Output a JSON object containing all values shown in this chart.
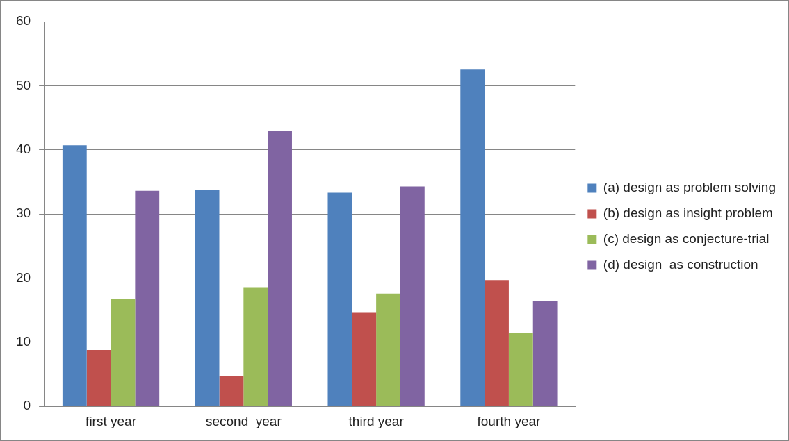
{
  "chart_data": {
    "type": "bar",
    "categories": [
      "first year",
      "second  year",
      "third year",
      "fourth year"
    ],
    "series": [
      {
        "name": "(a) design as problem solving",
        "color": "#4f81bd",
        "values": [
          40.7,
          33.7,
          33.3,
          52.5
        ]
      },
      {
        "name": "(b) design as insight problem",
        "color": "#c0504d",
        "values": [
          8.8,
          4.7,
          14.7,
          19.7
        ]
      },
      {
        "name": "(c) design as conjecture-trial",
        "color": "#9bbb59",
        "values": [
          16.8,
          18.6,
          17.6,
          11.5
        ]
      },
      {
        "name": "(d) design  as construction",
        "color": "#8064a2",
        "values": [
          33.6,
          43.0,
          34.3,
          16.4
        ]
      }
    ],
    "ylim": [
      0,
      60
    ],
    "yticks": [
      0,
      10,
      20,
      30,
      40,
      50,
      60
    ],
    "grid": "y",
    "legend": "right"
  }
}
